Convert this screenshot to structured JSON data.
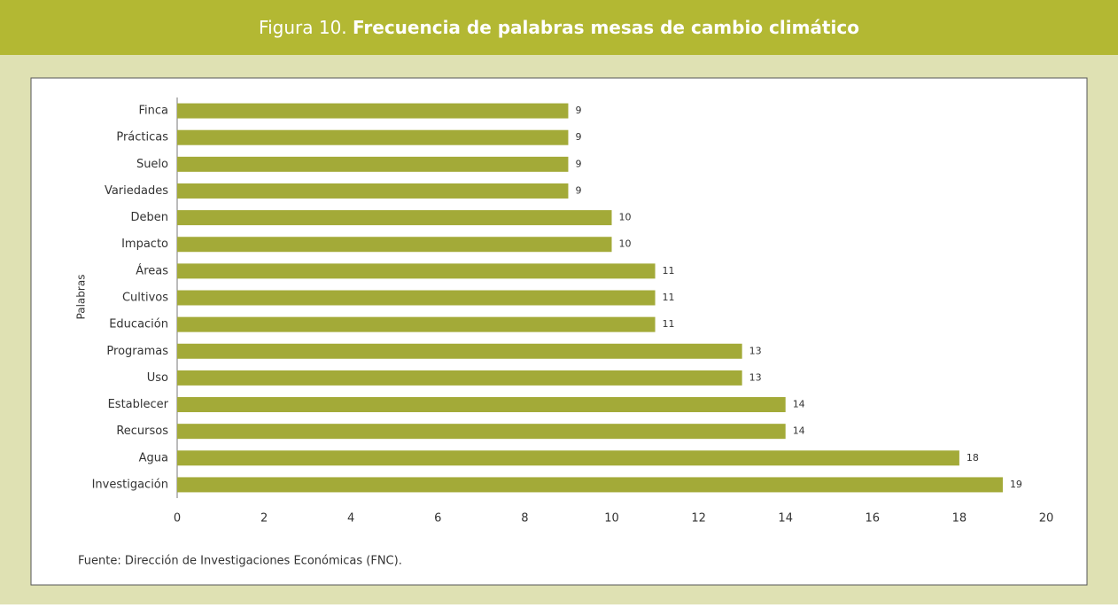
{
  "chart_data": {
    "type": "bar",
    "orientation": "horizontal",
    "figure_label": "Figura 10.",
    "title": "Frecuencia de palabras mesas de cambio climático",
    "ylabel": "Palabras",
    "source": "Fuente: Dirección de Investigaciones Económicas (FNC).",
    "categories": [
      "Finca",
      "Prácticas",
      "Suelo",
      "Variedades",
      "Deben",
      "Impacto",
      "Áreas",
      "Cultivos",
      "Educación",
      "Programas",
      "Uso",
      "Establecer",
      "Recursos",
      "Agua",
      "Investigación"
    ],
    "values": [
      9,
      9,
      9,
      9,
      10,
      10,
      11,
      11,
      11,
      13,
      13,
      14,
      14,
      18,
      19
    ],
    "color": "#a3aa38",
    "xlim": [
      0,
      20
    ],
    "xticks": [
      0,
      2,
      4,
      6,
      8,
      10,
      12,
      14,
      16,
      18,
      20
    ]
  }
}
